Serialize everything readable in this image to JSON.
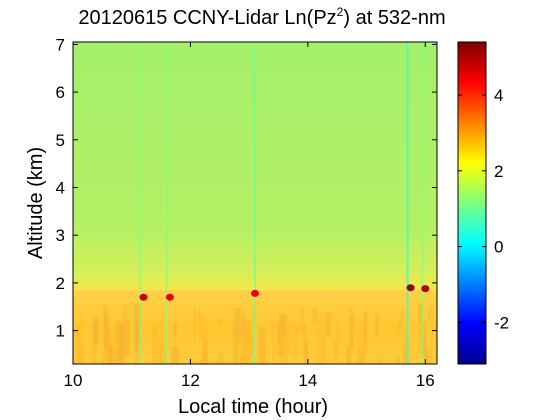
{
  "chart_data": {
    "type": "heatmap",
    "title": {
      "main": "20120615 CCNY-Lidar Ln(Pz",
      "superscript": "2",
      "tail": ") at 532-nm"
    },
    "xlabel": "Local time (hour)",
    "ylabel": "Altitude (km)",
    "xlim": [
      10,
      16.2
    ],
    "ylim": [
      0.3,
      7.05
    ],
    "xticks": [
      10,
      12,
      14,
      16
    ],
    "yticks": [
      1,
      2,
      3,
      4,
      5,
      6,
      7
    ],
    "colorbar": {
      "colormap": "jet",
      "clim": [
        -3.1,
        5.4
      ],
      "ticks": [
        -2,
        0,
        2,
        4
      ]
    },
    "layers": [
      {
        "region": "boundary layer",
        "altitude_range_km": [
          0.3,
          1.65
        ],
        "value": 2.8
      },
      {
        "region": "free troposphere",
        "altitude_range_km": [
          1.65,
          7.05
        ],
        "value": 1.8
      }
    ],
    "boundary_layer_top_km": 1.7,
    "streaks": [
      {
        "time": 11.15,
        "value": 1.2
      },
      {
        "time": 11.6,
        "value": 1.2
      },
      {
        "time": 13.1,
        "value": 1.0
      },
      {
        "time": 15.7,
        "value": 0.5
      },
      {
        "time": 15.95,
        "value": 1.2
      }
    ],
    "cloud_tops": [
      {
        "time": 11.2,
        "altitude_km": 1.7,
        "value": 4.8
      },
      {
        "time": 11.65,
        "altitude_km": 1.7,
        "value": 4.5
      },
      {
        "time": 13.1,
        "altitude_km": 1.78,
        "value": 4.5
      },
      {
        "time": 15.75,
        "altitude_km": 1.9,
        "value": 5.2
      },
      {
        "time": 16.0,
        "altitude_km": 1.88,
        "value": 5.0
      }
    ]
  }
}
